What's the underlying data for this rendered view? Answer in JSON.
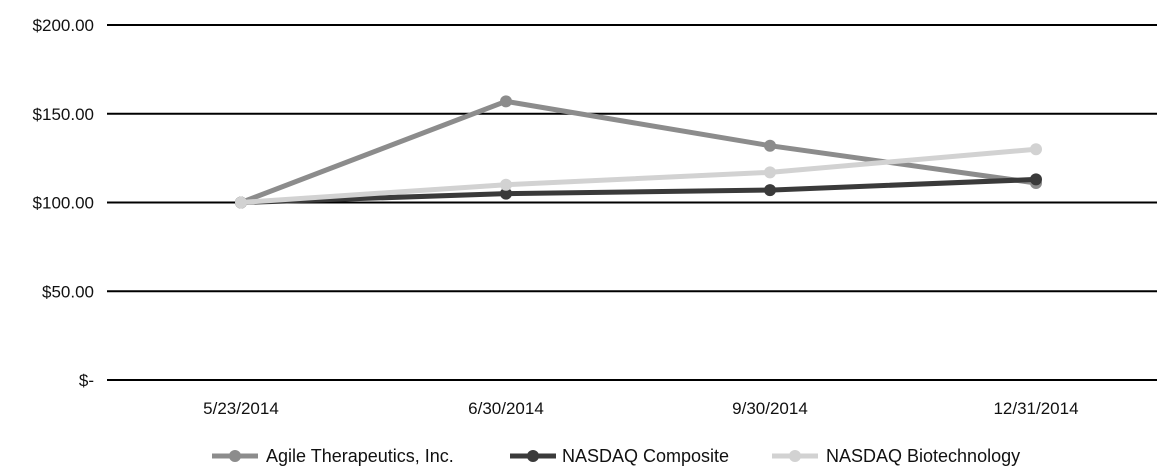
{
  "chart_data": {
    "type": "line",
    "title": "",
    "xlabel": "",
    "ylabel": "",
    "categories": [
      "5/23/2014",
      "6/30/2014",
      "9/30/2014",
      "12/31/2014"
    ],
    "y_ticks": [
      {
        "value": 0,
        "label": "$-"
      },
      {
        "value": 50,
        "label": "$50.00"
      },
      {
        "value": 100,
        "label": "$100.00"
      },
      {
        "value": 150,
        "label": "$150.00"
      },
      {
        "value": 200,
        "label": "$200.00"
      }
    ],
    "ylim": [
      0,
      200
    ],
    "grid": "horizontal",
    "legend_position": "bottom",
    "series": [
      {
        "name": "Agile Therapeutics, Inc.",
        "color": "#8c8c8c",
        "values": [
          100,
          157,
          132,
          111
        ]
      },
      {
        "name": "NASDAQ Composite",
        "color": "#3a3a3a",
        "values": [
          100,
          105,
          107,
          113
        ]
      },
      {
        "name": "NASDAQ Biotechnology",
        "color": "#d2d2d2",
        "values": [
          100,
          110,
          117,
          130
        ]
      }
    ]
  }
}
